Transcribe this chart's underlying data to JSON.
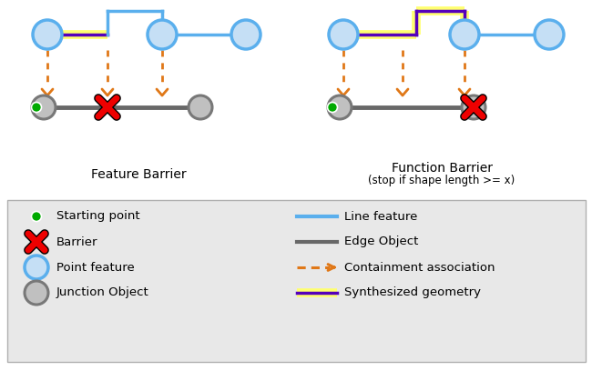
{
  "fig_width": 6.5,
  "fig_height": 4.08,
  "dpi": 100,
  "bg_color": "#ffffff",
  "legend_bg": "#e8e8e8",
  "blue_line_color": "#5aafed",
  "blue_circle_face": "#c5dff5",
  "blue_circle_edge": "#5aafed",
  "gray_circle_face": "#c0c0c0",
  "gray_circle_edge": "#787878",
  "orange": "#e07818",
  "yellow": "#ffff70",
  "purple": "#5500bb",
  "red": "#ee0000",
  "green": "#00aa00",
  "dark_gray": "#686868",
  "title1": "Feature Barrier",
  "title2": "Function Barrier",
  "subtitle2": "(stop if shape length >= x)"
}
